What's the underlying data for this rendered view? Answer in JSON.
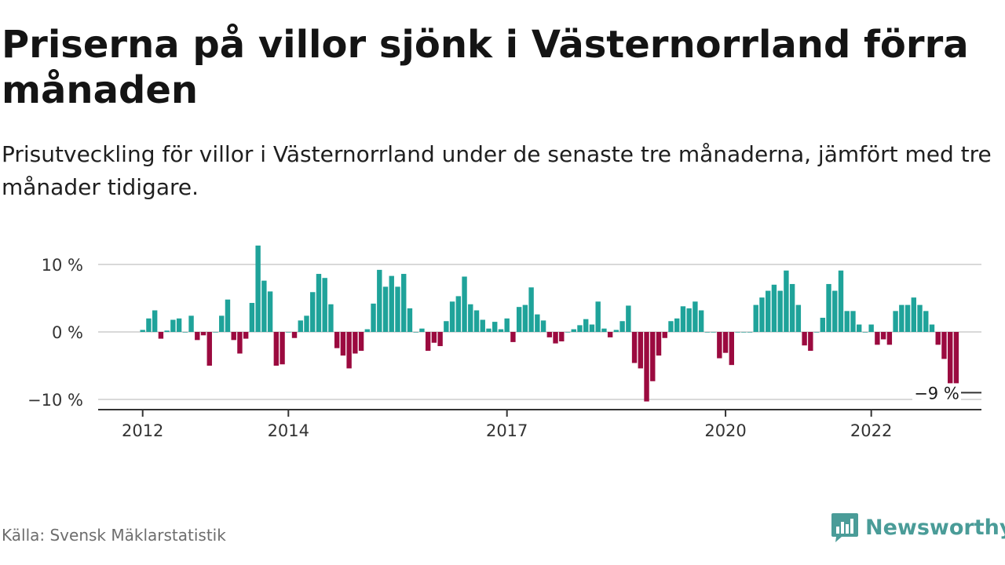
{
  "header": {
    "title": "Priserna på villor sjönk i Västernorrland förra månaden",
    "subtitle": "Prisutveckling för villor i Västernorrland under de senaste tre månaderna, jämfört med tre månader tidigare."
  },
  "footer": {
    "source": "Källa: Svensk Mäklarstatistik",
    "brand": "Newsworthy"
  },
  "colors": {
    "positive": "#1fa39a",
    "negative": "#9b0a3f",
    "grid": "#d9d9d9",
    "axis": "#333333",
    "brand": "#4a9c98"
  },
  "chart_data": {
    "type": "bar",
    "x_start": "2012-01",
    "x_end": "2022-09",
    "x_ticks": [
      "2012",
      "2014",
      "2017",
      "2020",
      "2022"
    ],
    "y_ticks": [
      "10 %",
      "0 %",
      "−10 %"
    ],
    "ylim": [
      -11,
      12
    ],
    "unit": "%",
    "last_value_label": "−9 %",
    "grid": true,
    "values": [
      0.3,
      2,
      3.2,
      -1,
      0.2,
      1.8,
      2,
      0,
      2.4,
      -1.2,
      -0.5,
      -5,
      0,
      2.4,
      4.8,
      -1.2,
      -3.2,
      -1,
      4.3,
      12.8,
      7.6,
      6,
      -5,
      -4.8,
      0,
      -0.9,
      1.7,
      2.4,
      5.9,
      8.6,
      8,
      4.1,
      -2.4,
      -3.5,
      -5.4,
      -3.2,
      -2.8,
      0.4,
      4.2,
      9.2,
      6.7,
      8.3,
      6.7,
      8.6,
      3.5,
      0,
      0.5,
      -2.8,
      -1.6,
      -2.1,
      1.6,
      4.5,
      5.3,
      8.2,
      4.1,
      3.2,
      1.8,
      0.5,
      1.5,
      0.4,
      2,
      -1.5,
      3.7,
      4,
      6.6,
      2.6,
      1.7,
      -0.8,
      -1.7,
      -1.4,
      0,
      0.4,
      1,
      1.9,
      1.1,
      4.5,
      0.5,
      -0.8,
      0.3,
      1.6,
      3.9,
      -4.6,
      -5.4,
      -10.3,
      -7.3,
      -3.5,
      -0.9,
      1.6,
      2,
      3.8,
      3.5,
      4.5,
      3.2,
      0,
      0,
      -3.9,
      -3.1,
      -4.9,
      0,
      0,
      0,
      4,
      5.1,
      6.1,
      7,
      6.1,
      9.1,
      7.1,
      4,
      -2,
      -2.8,
      0,
      2.1,
      7.1,
      6.1,
      9.1,
      3.1,
      3.1,
      1.1,
      0,
      1.1,
      -1.9,
      -1.1,
      -1.9,
      3.1,
      4,
      4,
      5.1,
      4,
      3.1,
      1.1,
      -1.9,
      -4,
      -8,
      -9
    ]
  }
}
